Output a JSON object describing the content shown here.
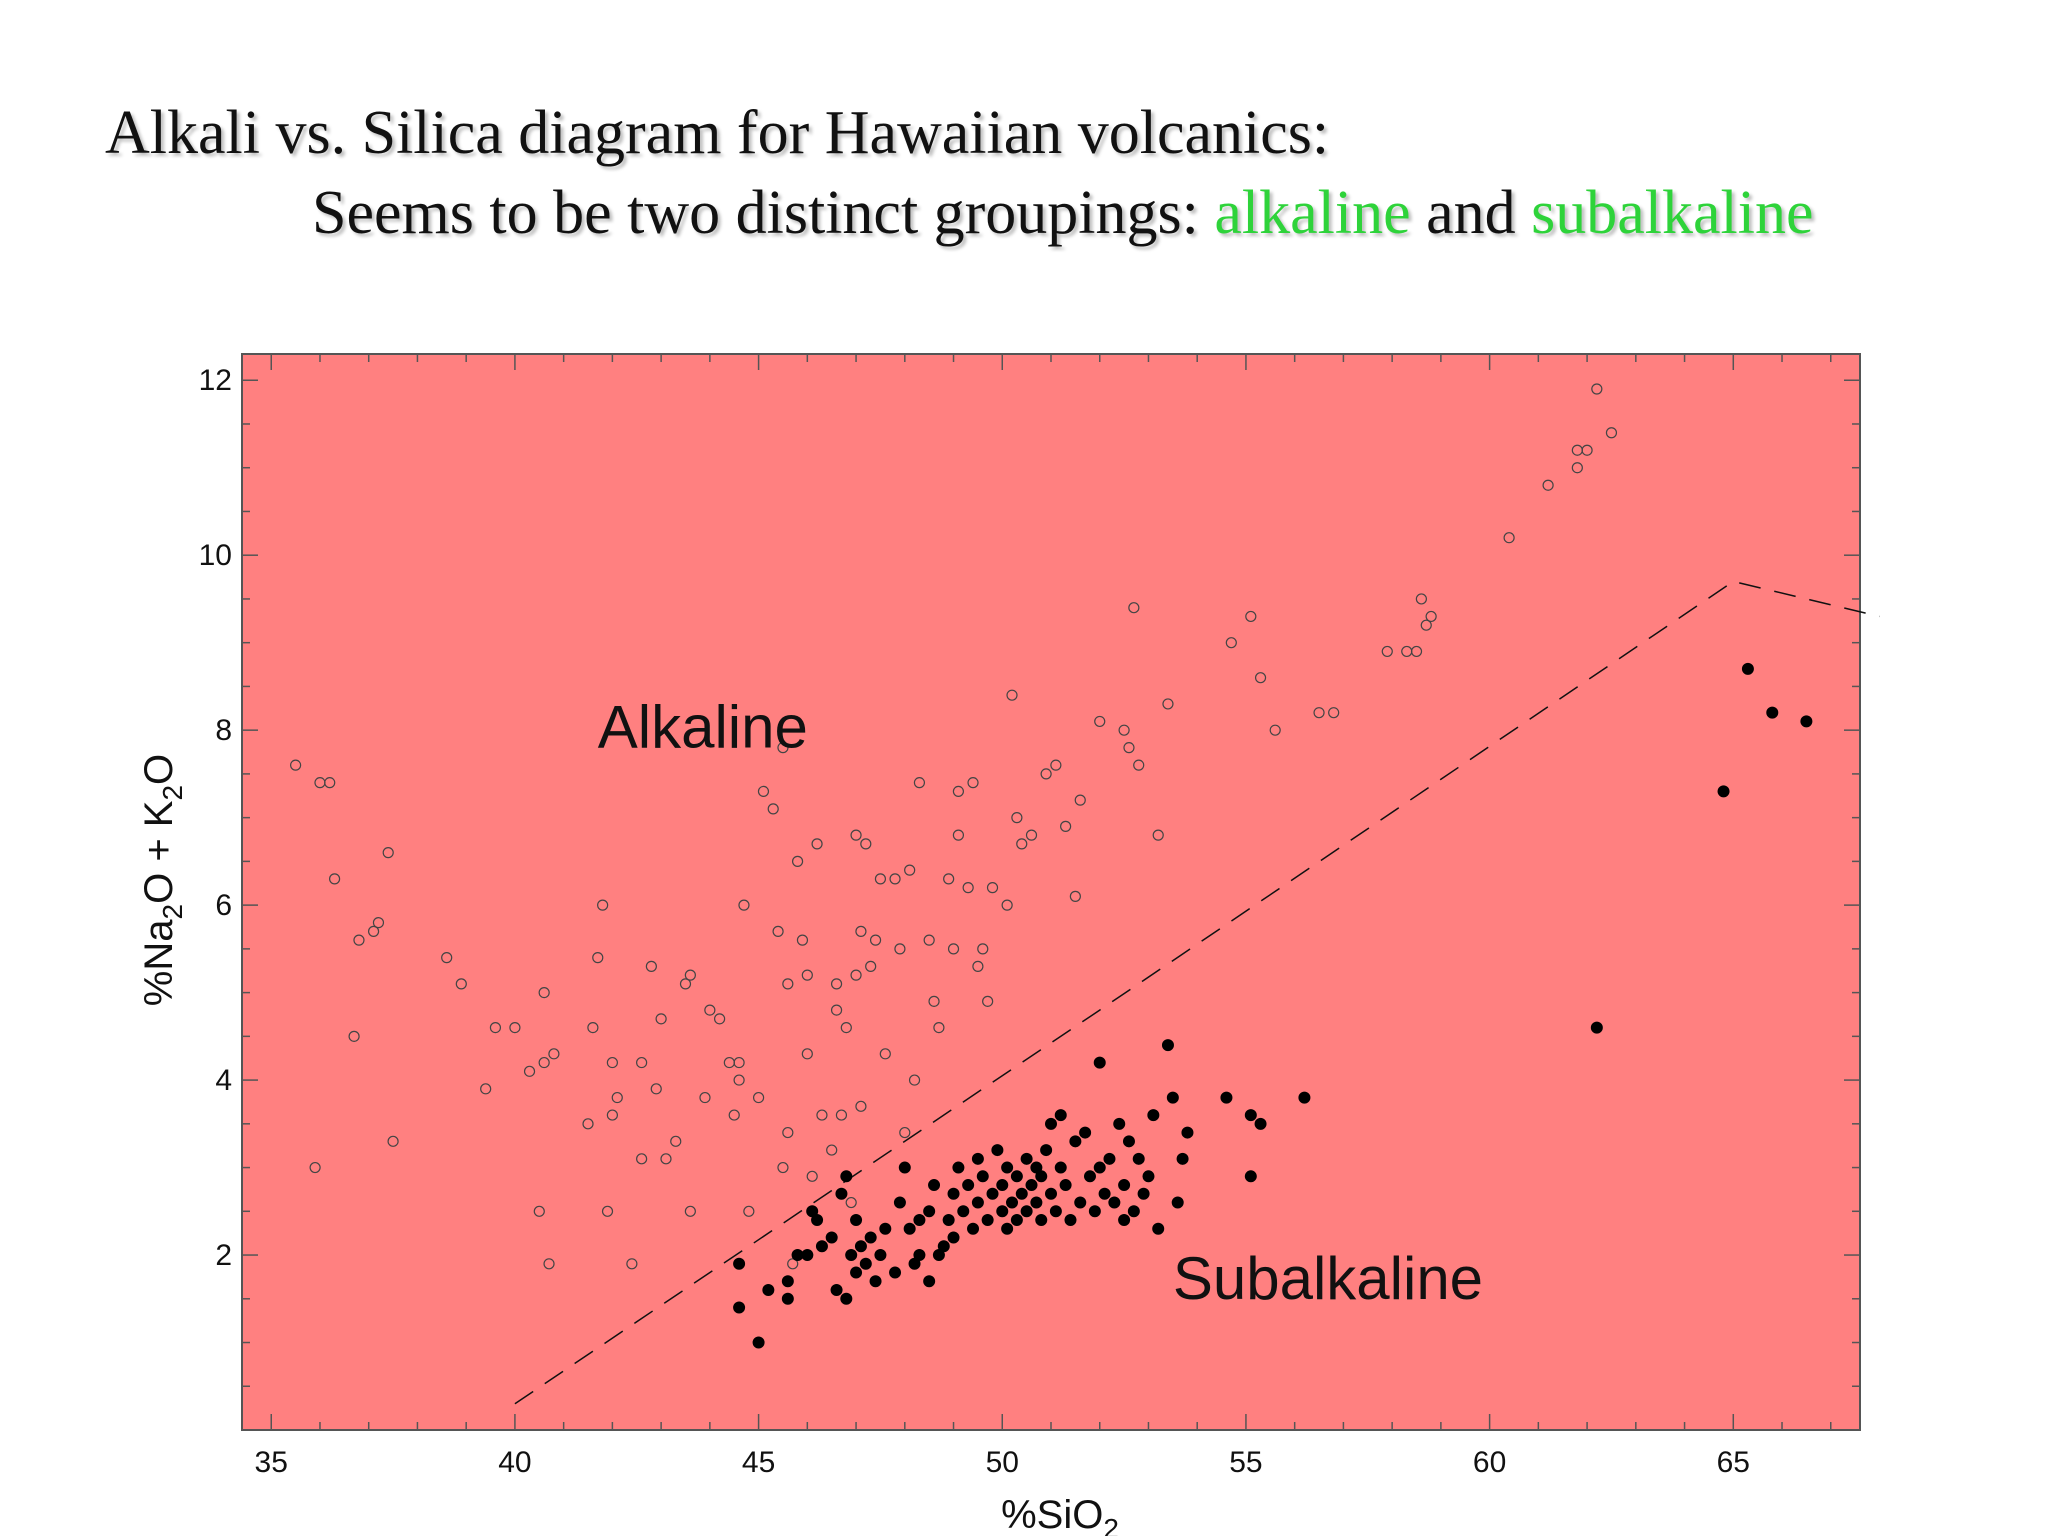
{
  "slide": {
    "title_line1": "Alkali vs. Silica diagram for Hawaiian volcanics:",
    "title_line2_prefix": "Seems to be two distinct groupings: ",
    "title_line2_word1": "alkaline",
    "title_line2_and": " and ",
    "title_line2_word2": "subalkaline"
  },
  "colors": {
    "accent": "#2ed33a",
    "plot_background": "#ff8080",
    "marker": "#000000"
  },
  "chart_data": {
    "type": "scatter",
    "title": "",
    "xlabel_main": "%SiO",
    "xlabel_sub": "2",
    "ylabel_parts": [
      "%Na",
      "2",
      "O + K",
      "2",
      "O"
    ],
    "xlim": [
      34.4,
      67.6
    ],
    "ylim": [
      0,
      12.3
    ],
    "xticks": [
      35,
      40,
      45,
      50,
      55,
      60,
      65
    ],
    "yticks": [
      2,
      4,
      6,
      8,
      10,
      12
    ],
    "grid": false,
    "annotations": [
      {
        "text": "Alkaline",
        "x": 41.7,
        "y": 7.8
      },
      {
        "text": "Subalkaline",
        "x": 53.5,
        "y": 1.5
      }
    ],
    "divider_line": {
      "style": "dashed",
      "points": [
        [
          40,
          0.3
        ],
        [
          52,
          4.8
        ],
        [
          65,
          9.7
        ],
        [
          68,
          9.3
        ]
      ]
    },
    "series": [
      {
        "marker": "open-circle",
        "points": [
          [
            35.5,
            7.6
          ],
          [
            35.9,
            3.0
          ],
          [
            36.0,
            7.4
          ],
          [
            36.2,
            7.4
          ],
          [
            36.3,
            6.3
          ],
          [
            36.7,
            4.5
          ],
          [
            36.8,
            5.6
          ],
          [
            37.1,
            5.7
          ],
          [
            37.2,
            5.8
          ],
          [
            37.4,
            6.6
          ],
          [
            37.5,
            3.3
          ],
          [
            38.6,
            5.4
          ],
          [
            38.9,
            5.1
          ],
          [
            39.4,
            3.9
          ],
          [
            39.6,
            4.6
          ],
          [
            40.0,
            4.6
          ],
          [
            40.3,
            4.1
          ],
          [
            40.5,
            2.5
          ],
          [
            40.6,
            5.0
          ],
          [
            40.6,
            4.2
          ],
          [
            40.7,
            1.9
          ],
          [
            40.8,
            4.3
          ],
          [
            41.5,
            3.5
          ],
          [
            41.6,
            4.6
          ],
          [
            41.7,
            5.4
          ],
          [
            41.8,
            6.0
          ],
          [
            41.9,
            2.5
          ],
          [
            42.0,
            3.6
          ],
          [
            42.0,
            4.2
          ],
          [
            42.1,
            3.8
          ],
          [
            42.4,
            1.9
          ],
          [
            42.6,
            3.1
          ],
          [
            42.6,
            4.2
          ],
          [
            42.8,
            5.3
          ],
          [
            42.9,
            3.9
          ],
          [
            43.0,
            4.7
          ],
          [
            43.1,
            3.1
          ],
          [
            43.3,
            3.3
          ],
          [
            43.5,
            5.1
          ],
          [
            43.6,
            5.2
          ],
          [
            43.6,
            2.5
          ],
          [
            43.9,
            3.8
          ],
          [
            44.0,
            4.8
          ],
          [
            44.2,
            4.7
          ],
          [
            44.4,
            4.2
          ],
          [
            44.5,
            3.6
          ],
          [
            44.6,
            4.0
          ],
          [
            44.6,
            4.2
          ],
          [
            44.7,
            6.0
          ],
          [
            44.8,
            2.5
          ],
          [
            45.0,
            3.8
          ],
          [
            45.1,
            7.3
          ],
          [
            45.3,
            7.1
          ],
          [
            45.4,
            5.7
          ],
          [
            45.5,
            7.8
          ],
          [
            45.5,
            3.0
          ],
          [
            45.6,
            3.4
          ],
          [
            45.6,
            5.1
          ],
          [
            45.7,
            1.9
          ],
          [
            45.8,
            6.5
          ],
          [
            45.9,
            5.6
          ],
          [
            46.0,
            4.3
          ],
          [
            46.0,
            5.2
          ],
          [
            46.1,
            2.9
          ],
          [
            46.2,
            6.7
          ],
          [
            46.3,
            3.6
          ],
          [
            46.5,
            3.2
          ],
          [
            46.6,
            4.8
          ],
          [
            46.6,
            5.1
          ],
          [
            46.7,
            3.6
          ],
          [
            46.8,
            4.6
          ],
          [
            46.9,
            2.6
          ],
          [
            47.0,
            6.8
          ],
          [
            47.0,
            5.2
          ],
          [
            47.1,
            5.7
          ],
          [
            47.1,
            3.7
          ],
          [
            47.2,
            6.7
          ],
          [
            47.3,
            5.3
          ],
          [
            47.4,
            5.6
          ],
          [
            47.5,
            6.3
          ],
          [
            47.6,
            4.3
          ],
          [
            47.8,
            6.3
          ],
          [
            47.9,
            5.5
          ],
          [
            48.0,
            3.4
          ],
          [
            48.1,
            6.4
          ],
          [
            48.2,
            4.0
          ],
          [
            48.3,
            7.4
          ],
          [
            48.5,
            5.6
          ],
          [
            48.6,
            4.9
          ],
          [
            48.7,
            4.6
          ],
          [
            48.9,
            6.3
          ],
          [
            49.0,
            5.5
          ],
          [
            49.1,
            6.8
          ],
          [
            49.1,
            7.3
          ],
          [
            49.3,
            6.2
          ],
          [
            49.4,
            7.4
          ],
          [
            49.5,
            5.3
          ],
          [
            49.6,
            5.5
          ],
          [
            49.7,
            4.9
          ],
          [
            49.8,
            6.2
          ],
          [
            50.1,
            6.0
          ],
          [
            50.2,
            8.4
          ],
          [
            50.3,
            7.0
          ],
          [
            50.4,
            6.7
          ],
          [
            50.6,
            6.8
          ],
          [
            50.9,
            7.5
          ],
          [
            51.1,
            7.6
          ],
          [
            51.3,
            6.9
          ],
          [
            51.5,
            6.1
          ],
          [
            51.6,
            7.2
          ],
          [
            52.0,
            8.1
          ],
          [
            52.5,
            8.0
          ],
          [
            52.6,
            7.8
          ],
          [
            52.8,
            7.6
          ],
          [
            52.7,
            9.4
          ],
          [
            53.2,
            6.8
          ],
          [
            53.4,
            8.3
          ],
          [
            54.7,
            9.0
          ],
          [
            55.1,
            9.3
          ],
          [
            55.3,
            8.6
          ],
          [
            55.6,
            8.0
          ],
          [
            56.5,
            8.2
          ],
          [
            56.8,
            8.2
          ],
          [
            57.9,
            8.9
          ],
          [
            58.3,
            8.9
          ],
          [
            58.5,
            8.9
          ],
          [
            58.6,
            9.5
          ],
          [
            58.7,
            9.2
          ],
          [
            58.8,
            9.3
          ],
          [
            60.4,
            10.2
          ],
          [
            61.2,
            10.8
          ],
          [
            61.8,
            11.0
          ],
          [
            61.8,
            11.2
          ],
          [
            62.0,
            11.2
          ],
          [
            62.2,
            11.9
          ],
          [
            62.5,
            11.4
          ]
        ]
      },
      {
        "marker": "filled-circle",
        "points": [
          [
            44.6,
            1.4
          ],
          [
            44.6,
            1.9
          ],
          [
            45.0,
            1.0
          ],
          [
            45.2,
            1.6
          ],
          [
            45.6,
            1.5
          ],
          [
            45.6,
            1.7
          ],
          [
            45.8,
            2.0
          ],
          [
            46.0,
            2.0
          ],
          [
            46.1,
            2.5
          ],
          [
            46.2,
            2.4
          ],
          [
            46.3,
            2.1
          ],
          [
            46.5,
            2.2
          ],
          [
            46.6,
            1.6
          ],
          [
            46.7,
            2.7
          ],
          [
            46.8,
            1.5
          ],
          [
            46.8,
            2.9
          ],
          [
            46.9,
            2.0
          ],
          [
            47.0,
            1.8
          ],
          [
            47.0,
            2.4
          ],
          [
            47.1,
            2.1
          ],
          [
            47.2,
            1.9
          ],
          [
            47.3,
            2.2
          ],
          [
            47.4,
            1.7
          ],
          [
            47.5,
            2.0
          ],
          [
            47.6,
            2.3
          ],
          [
            47.8,
            1.8
          ],
          [
            47.9,
            2.6
          ],
          [
            48.0,
            3.0
          ],
          [
            48.1,
            2.3
          ],
          [
            48.2,
            1.9
          ],
          [
            48.3,
            2.0
          ],
          [
            48.3,
            2.4
          ],
          [
            48.5,
            2.5
          ],
          [
            48.5,
            1.7
          ],
          [
            48.6,
            2.8
          ],
          [
            48.7,
            2.0
          ],
          [
            48.8,
            2.1
          ],
          [
            48.9,
            2.4
          ],
          [
            49.0,
            2.2
          ],
          [
            49.0,
            2.7
          ],
          [
            49.1,
            3.0
          ],
          [
            49.2,
            2.5
          ],
          [
            49.3,
            2.8
          ],
          [
            49.4,
            2.3
          ],
          [
            49.5,
            2.6
          ],
          [
            49.5,
            3.1
          ],
          [
            49.6,
            2.9
          ],
          [
            49.7,
            2.4
          ],
          [
            49.8,
            2.7
          ],
          [
            49.9,
            3.2
          ],
          [
            50.0,
            2.5
          ],
          [
            50.0,
            2.8
          ],
          [
            50.1,
            3.0
          ],
          [
            50.1,
            2.3
          ],
          [
            50.2,
            2.6
          ],
          [
            50.3,
            2.9
          ],
          [
            50.3,
            2.4
          ],
          [
            50.4,
            2.7
          ],
          [
            50.5,
            3.1
          ],
          [
            50.5,
            2.5
          ],
          [
            50.6,
            2.8
          ],
          [
            50.7,
            2.6
          ],
          [
            50.7,
            3.0
          ],
          [
            50.8,
            2.4
          ],
          [
            50.8,
            2.9
          ],
          [
            50.9,
            3.2
          ],
          [
            51.0,
            2.7
          ],
          [
            51.0,
            3.5
          ],
          [
            51.1,
            2.5
          ],
          [
            51.2,
            3.0
          ],
          [
            51.2,
            3.6
          ],
          [
            51.3,
            2.8
          ],
          [
            51.4,
            2.4
          ],
          [
            51.5,
            3.3
          ],
          [
            51.6,
            2.6
          ],
          [
            51.7,
            3.4
          ],
          [
            51.8,
            2.9
          ],
          [
            51.9,
            2.5
          ],
          [
            52.0,
            3.0
          ],
          [
            52.0,
            4.2
          ],
          [
            52.1,
            2.7
          ],
          [
            52.2,
            3.1
          ],
          [
            52.3,
            2.6
          ],
          [
            52.4,
            3.5
          ],
          [
            52.5,
            2.4
          ],
          [
            52.5,
            2.8
          ],
          [
            52.6,
            3.3
          ],
          [
            52.7,
            2.5
          ],
          [
            52.8,
            3.1
          ],
          [
            52.9,
            2.7
          ],
          [
            53.0,
            2.9
          ],
          [
            53.1,
            3.6
          ],
          [
            53.2,
            2.3
          ],
          [
            53.4,
            4.4
          ],
          [
            53.5,
            3.8
          ],
          [
            53.6,
            2.6
          ],
          [
            53.7,
            3.1
          ],
          [
            53.8,
            3.4
          ],
          [
            54.6,
            3.8
          ],
          [
            55.1,
            3.6
          ],
          [
            55.1,
            2.9
          ],
          [
            55.3,
            3.5
          ],
          [
            56.2,
            3.8
          ],
          [
            62.2,
            4.6
          ],
          [
            64.8,
            7.3
          ],
          [
            65.3,
            8.7
          ],
          [
            65.8,
            8.2
          ],
          [
            66.5,
            8.1
          ]
        ]
      }
    ]
  }
}
